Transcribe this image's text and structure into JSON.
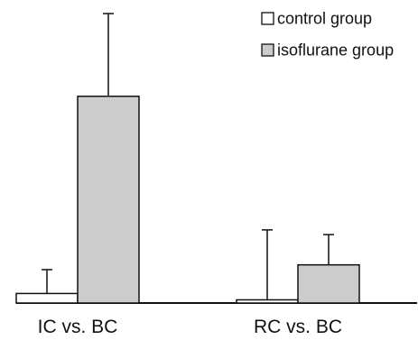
{
  "chart_data": {
    "type": "bar",
    "title": "",
    "xlabel": "",
    "ylabel": "",
    "categories": [
      "IC vs. BC",
      "RC vs. BC"
    ],
    "series": [
      {
        "name": "control group",
        "values": [
          0.3,
          0.1
        ],
        "error": [
          0.75,
          2.2
        ],
        "color": "#ffffff"
      },
      {
        "name": "isoflurane group",
        "values": [
          6.5,
          1.2
        ],
        "error": [
          2.6,
          0.95
        ],
        "color": "#cccccc"
      }
    ],
    "ylim": [
      0,
      9.3
    ],
    "grid": false,
    "legend": "top-right",
    "axis_color": "#111111"
  }
}
